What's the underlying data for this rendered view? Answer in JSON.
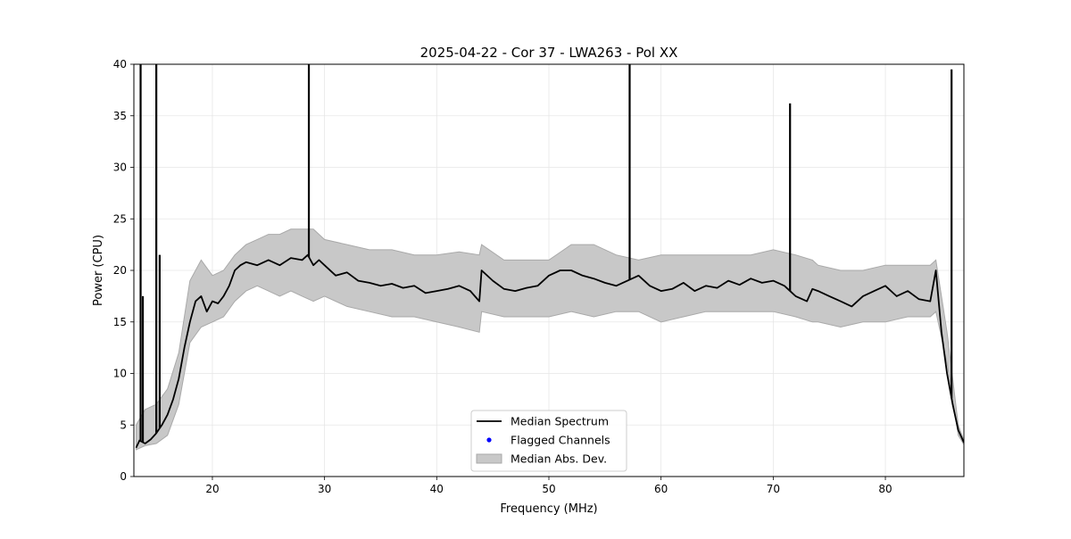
{
  "chart_data": {
    "type": "line",
    "title": "2025-04-22 - Cor 37 - LWA263 - Pol XX",
    "xlabel": "Frequency (MHz)",
    "ylabel": "Power (CPU)",
    "xlim": [
      13.0,
      87.0
    ],
    "ylim": [
      0,
      40
    ],
    "xticks": [
      20,
      30,
      40,
      50,
      60,
      70,
      80
    ],
    "yticks": [
      0,
      5,
      10,
      15,
      20,
      25,
      30,
      35,
      40
    ],
    "grid": true,
    "legend_placement": "lower-center",
    "legend": [
      {
        "label": "Median Spectrum",
        "kind": "line",
        "color": "#000000"
      },
      {
        "label": "Flagged Channels",
        "kind": "point",
        "color": "#0000ff"
      },
      {
        "label": "Median Abs. Dev.",
        "kind": "patch",
        "color": "#c8c8c8"
      }
    ],
    "series": [
      {
        "name": "Median Spectrum",
        "color": "#000000",
        "x": [
          13.2,
          13.5,
          14.0,
          14.5,
          15.0,
          15.5,
          16.0,
          16.5,
          17.0,
          17.5,
          18.0,
          18.5,
          19.0,
          19.5,
          20.0,
          20.5,
          21.0,
          21.5,
          22.0,
          22.5,
          23.0,
          24.0,
          25.0,
          26.0,
          27.0,
          28.0,
          28.5,
          29.0,
          29.5,
          30.0,
          31.0,
          32.0,
          33.0,
          34.0,
          35.0,
          36.0,
          37.0,
          38.0,
          39.0,
          40.0,
          41.0,
          42.0,
          43.0,
          43.8,
          44.0,
          45.0,
          46.0,
          47.0,
          48.0,
          49.0,
          50.0,
          51.0,
          52.0,
          53.0,
          54.0,
          55.0,
          56.0,
          57.0,
          58.0,
          59.0,
          60.0,
          61.0,
          62.0,
          63.0,
          64.0,
          65.0,
          66.0,
          67.0,
          68.0,
          69.0,
          70.0,
          71.0,
          72.0,
          73.0,
          73.5,
          74.0,
          75.0,
          76.0,
          77.0,
          78.0,
          79.0,
          80.0,
          81.0,
          82.0,
          83.0,
          84.0,
          84.5,
          85.0,
          85.5,
          86.0,
          86.5,
          87.0
        ],
        "y": [
          2.8,
          3.5,
          3.2,
          3.6,
          4.2,
          5.0,
          6.0,
          7.5,
          9.5,
          12.5,
          15.0,
          17.0,
          17.5,
          16.0,
          17.0,
          16.8,
          17.5,
          18.5,
          20.0,
          20.5,
          20.8,
          20.5,
          21.0,
          20.5,
          21.2,
          21.0,
          21.5,
          20.5,
          21.0,
          20.5,
          19.5,
          19.8,
          19.0,
          18.8,
          18.5,
          18.7,
          18.3,
          18.5,
          17.8,
          18.0,
          18.2,
          18.5,
          18.0,
          17.0,
          20.0,
          19.0,
          18.2,
          18.0,
          18.3,
          18.5,
          19.5,
          20.0,
          20.0,
          19.5,
          19.2,
          18.8,
          18.5,
          19.0,
          19.5,
          18.5,
          18.0,
          18.2,
          18.8,
          18.0,
          18.5,
          18.3,
          19.0,
          18.6,
          19.2,
          18.8,
          19.0,
          18.5,
          17.5,
          17.0,
          18.2,
          18.0,
          17.5,
          17.0,
          16.5,
          17.5,
          18.0,
          18.5,
          17.5,
          18.0,
          17.2,
          17.0,
          20.0,
          14.0,
          10.0,
          7.0,
          4.5,
          3.3
        ]
      }
    ],
    "spikes": [
      {
        "x": 13.6,
        "y": 40.0
      },
      {
        "x": 13.8,
        "y": 17.5
      },
      {
        "x": 15.0,
        "y": 40.0
      },
      {
        "x": 15.3,
        "y": 21.5
      },
      {
        "x": 28.6,
        "y": 40.0
      },
      {
        "x": 57.2,
        "y": 40.0
      },
      {
        "x": 71.5,
        "y": 36.2
      },
      {
        "x": 85.9,
        "y": 39.5
      }
    ],
    "mad_band": {
      "name": "Median Abs. Dev.",
      "color": "#c8c8c8",
      "x": [
        13.2,
        14.0,
        15.0,
        16.0,
        17.0,
        18.0,
        19.0,
        20.0,
        21.0,
        22.0,
        23.0,
        24.0,
        25.0,
        26.0,
        27.0,
        28.0,
        29.0,
        30.0,
        32.0,
        34.0,
        36.0,
        38.0,
        40.0,
        42.0,
        43.8,
        44.0,
        46.0,
        48.0,
        50.0,
        52.0,
        54.0,
        56.0,
        58.0,
        60.0,
        62.0,
        64.0,
        66.0,
        68.0,
        70.0,
        72.0,
        73.5,
        74.0,
        76.0,
        78.0,
        80.0,
        82.0,
        84.0,
        84.5,
        85.5,
        86.5,
        87.0
      ],
      "upper": [
        5.0,
        6.5,
        7.0,
        8.5,
        12.0,
        19.0,
        21.0,
        19.5,
        20.0,
        21.5,
        22.5,
        23.0,
        23.5,
        23.5,
        24.0,
        24.0,
        24.0,
        23.0,
        22.5,
        22.0,
        22.0,
        21.5,
        21.5,
        21.8,
        21.5,
        22.5,
        21.0,
        21.0,
        21.0,
        22.5,
        22.5,
        21.5,
        21.0,
        21.5,
        21.5,
        21.5,
        21.5,
        21.5,
        22.0,
        21.5,
        21.0,
        20.5,
        20.0,
        20.0,
        20.5,
        20.5,
        20.5,
        21.0,
        14.0,
        5.0,
        3.5
      ],
      "lower": [
        2.6,
        3.0,
        3.2,
        4.0,
        7.0,
        13.0,
        14.5,
        15.0,
        15.5,
        17.0,
        18.0,
        18.5,
        18.0,
        17.5,
        18.0,
        17.5,
        17.0,
        17.5,
        16.5,
        16.0,
        15.5,
        15.5,
        15.0,
        14.5,
        14.0,
        16.0,
        15.5,
        15.5,
        15.5,
        16.0,
        15.5,
        16.0,
        16.0,
        15.0,
        15.5,
        16.0,
        16.0,
        16.0,
        16.0,
        15.5,
        15.0,
        15.0,
        14.5,
        15.0,
        15.0,
        15.5,
        15.5,
        16.0,
        11.0,
        4.0,
        3.1
      ]
    },
    "flagged_channels": []
  }
}
